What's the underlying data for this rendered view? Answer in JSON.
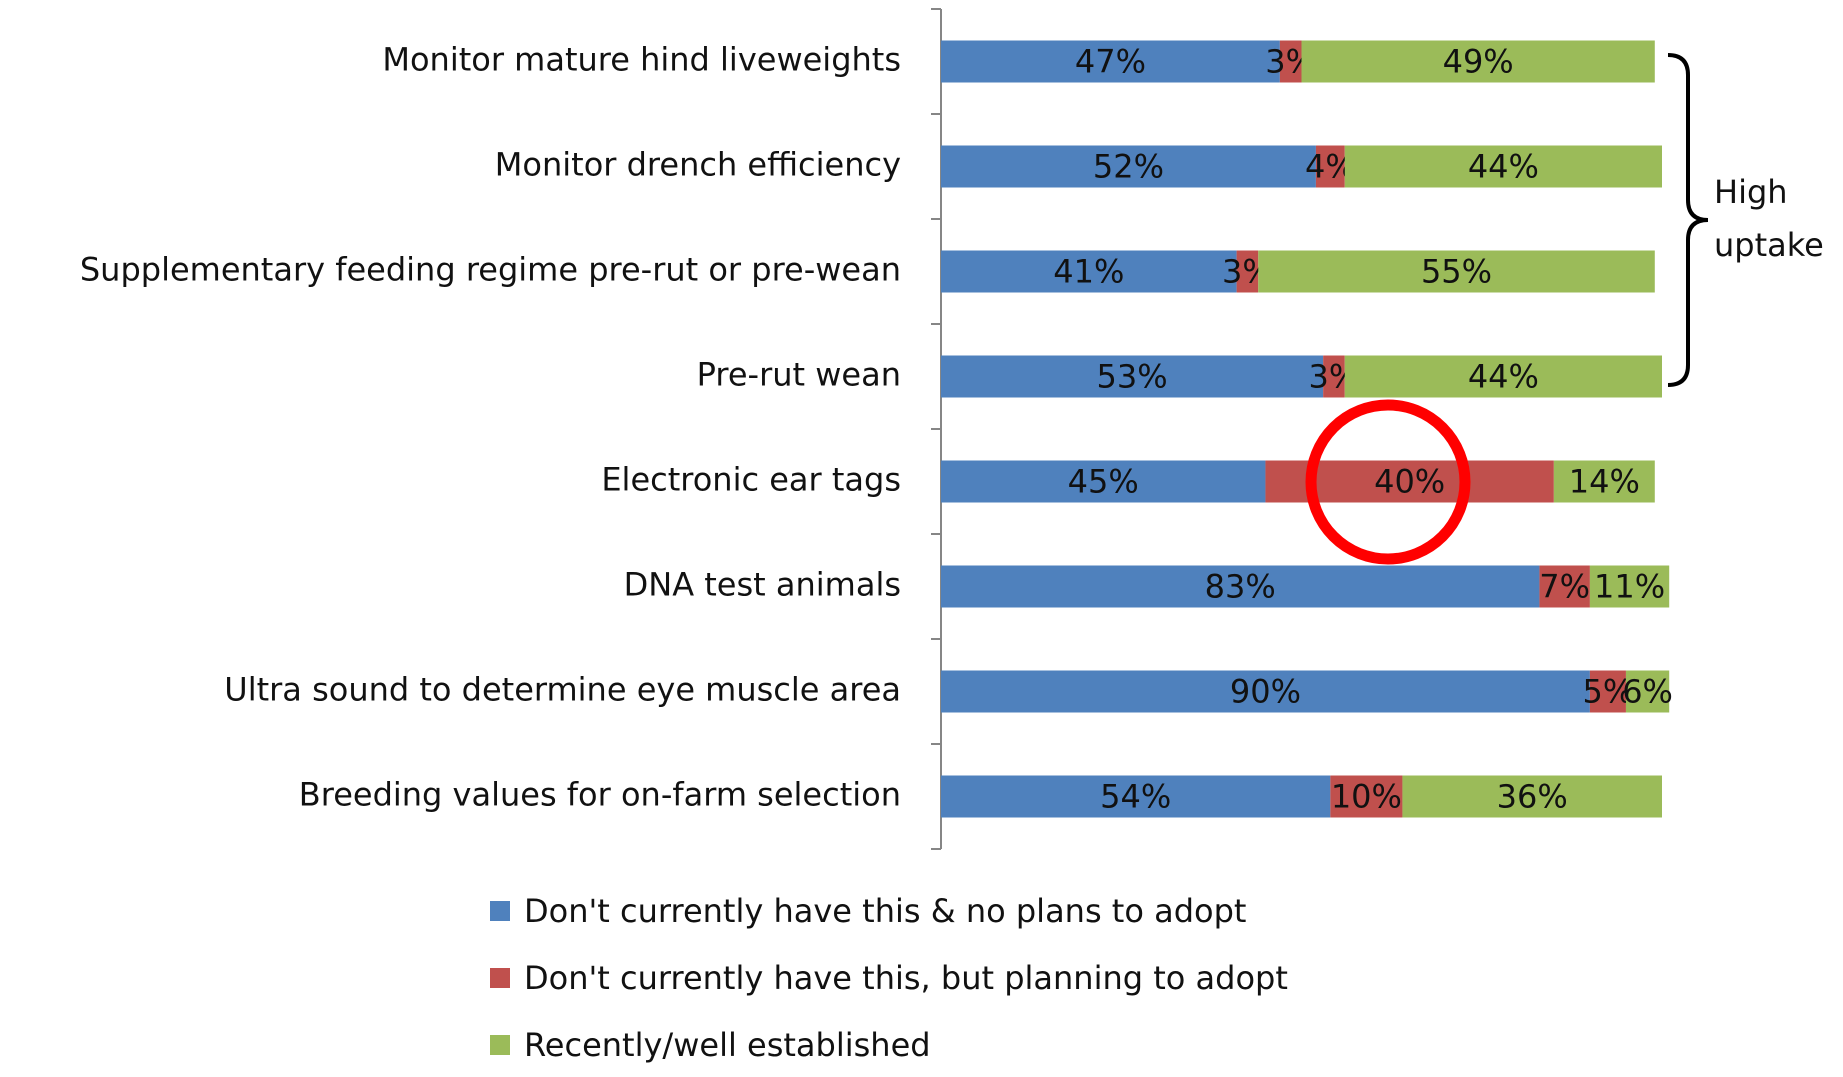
{
  "chart_data": {
    "type": "stacked_barh",
    "categories": [
      "Monitor mature hind liveweights",
      "Monitor drench efficiency",
      "Supplementary feeding regime pre-rut or pre-wean",
      "Pre-rut wean",
      "Electronic ear tags",
      "DNA test animals",
      "Ultra sound to determine eye muscle area",
      "Breeding values for on-farm selection"
    ],
    "series": [
      {
        "name": "Don't currently have this & no plans to adopt",
        "color": "#4f81bd",
        "values": [
          47,
          52,
          41,
          53,
          45,
          83,
          90,
          54
        ],
        "value_labels": [
          "47%",
          "52%",
          "41%",
          "53%",
          "45%",
          "83%",
          "90%",
          "54%"
        ]
      },
      {
        "name": "Don't currently have this, but planning to adopt",
        "color": "#c0504d",
        "values": [
          3,
          4,
          3,
          3,
          40,
          7,
          5,
          10
        ],
        "value_labels": [
          "3%",
          "4%",
          "3%",
          "3%",
          "40%",
          "7%",
          "5%",
          "10%"
        ]
      },
      {
        "name": "Recently/well established",
        "color": "#9bbb59",
        "values": [
          49,
          44,
          55,
          44,
          14,
          11,
          6,
          36
        ],
        "value_labels": [
          "49%",
          "44%",
          "55%",
          "44%",
          "14%",
          "11%",
          "6%",
          "36%"
        ]
      }
    ],
    "xlim": [
      0,
      100
    ],
    "annotation": {
      "lines": [
        "High",
        "uptake"
      ]
    }
  }
}
